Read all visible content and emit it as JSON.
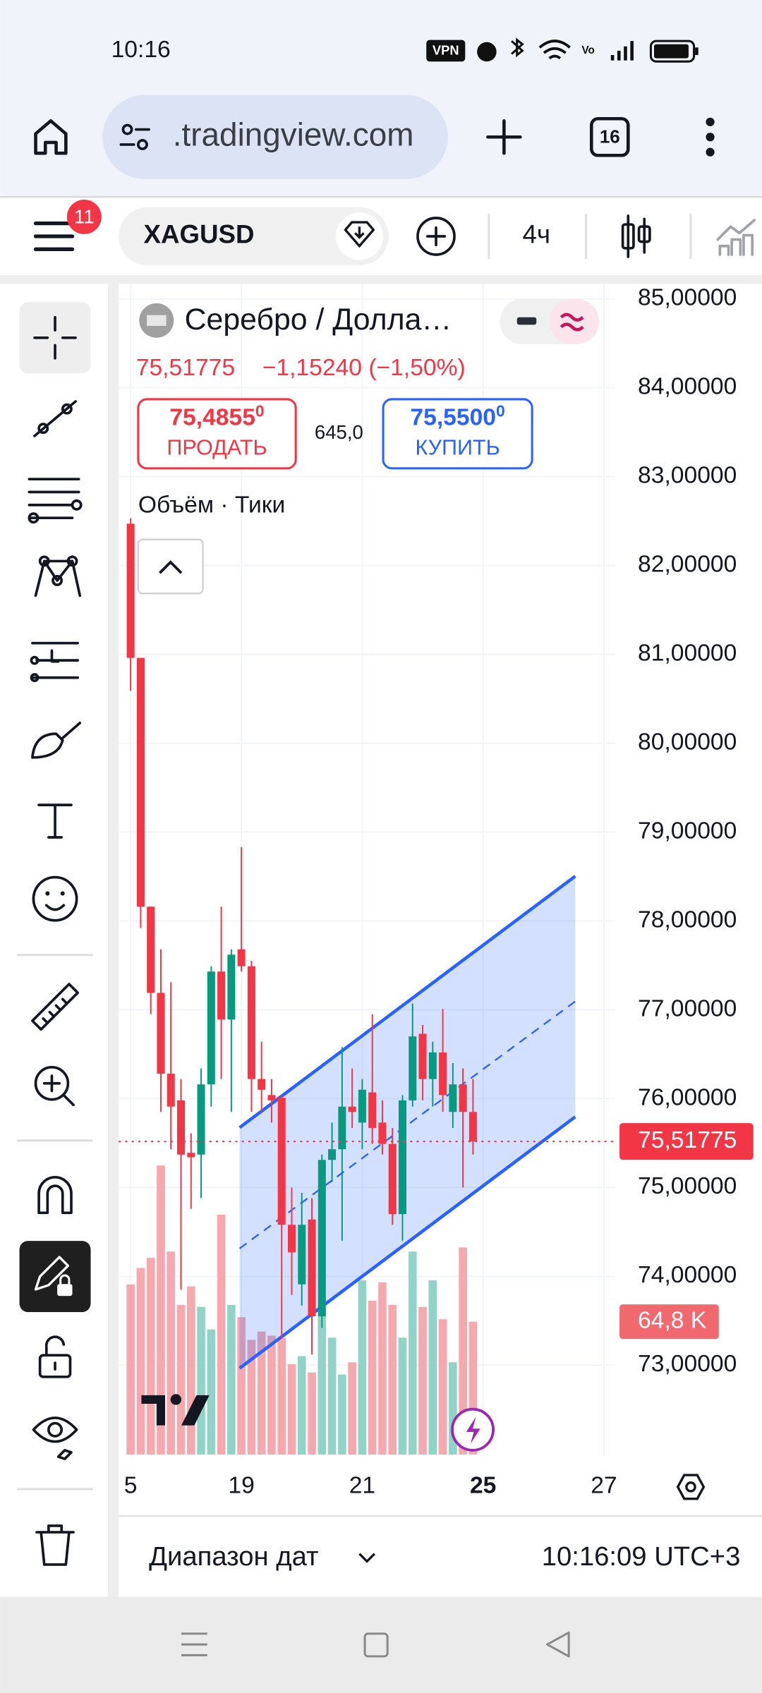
{
  "status_bar": {
    "time": "10:16",
    "vpn": "VPN"
  },
  "browser": {
    "url": ".tradingview.com",
    "tab_count": "16"
  },
  "toolbar": {
    "notifications": "11",
    "symbol": "XAGUSD",
    "interval": "4ч"
  },
  "header": {
    "title": "Серебро / Долла…",
    "price": "75,51775",
    "change": "−1,15240 (−1,50%)",
    "sell": {
      "price": "75,4855",
      "pip": "0",
      "label": "ПРОДАТЬ"
    },
    "spread": "645,0",
    "buy": {
      "price": "75,5500",
      "pip": "0",
      "label": "КУПИТЬ"
    },
    "indicator": "Объём · Тики"
  },
  "chart_data": {
    "type": "candlestick",
    "up_color": "#089981",
    "down_color": "#f23645",
    "up_volume_color": "#92d3c8",
    "down_volume_color": "#f5a8ad",
    "open": [
      82.47,
      80.96,
      78.16,
      77.19,
      76.28,
      75.98,
      75.39,
      75.37,
      76.16,
      77.43,
      76.89,
      77.68,
      77.49,
      76.22,
      76.04,
      76.01,
      74.58,
      73.91,
      74.64,
      73.55,
      75.31,
      75.43,
      75.91,
      75.73,
      76.07,
      75.73,
      75.49,
      74.7,
      75.98,
      76.73,
      76.22,
      76.52,
      75.85,
      76.16,
      75.85
    ],
    "high": [
      82.53,
      80.96,
      78.16,
      77.68,
      77.31,
      76.22,
      75.61,
      76.34,
      77.49,
      78.16,
      77.68,
      78.83,
      77.55,
      76.64,
      76.22,
      76.04,
      75.0,
      74.94,
      74.88,
      75.37,
      75.73,
      76.58,
      76.34,
      76.22,
      76.95,
      75.98,
      75.67,
      76.04,
      77.07,
      76.83,
      76.64,
      77.01,
      76.4,
      76.34,
      76.22
    ],
    "low": [
      80.59,
      77.92,
      76.95,
      75.85,
      75.43,
      73.85,
      74.76,
      74.88,
      75.91,
      76.22,
      75.85,
      77.43,
      75.85,
      75.85,
      75.73,
      73.3,
      73.79,
      73.67,
      73.12,
      73.42,
      75.06,
      74.4,
      75.67,
      75.43,
      75.49,
      75.37,
      74.58,
      74.4,
      75.91,
      75.98,
      75.91,
      75.85,
      75.67,
      75.0,
      75.37
    ],
    "close": [
      80.96,
      78.16,
      77.19,
      76.28,
      75.91,
      75.37,
      75.34,
      76.16,
      77.43,
      76.89,
      77.62,
      77.49,
      76.22,
      76.1,
      75.98,
      74.58,
      74.27,
      74.58,
      73.55,
      75.31,
      75.43,
      75.91,
      75.85,
      76.1,
      75.67,
      75.49,
      74.7,
      75.98,
      76.7,
      76.22,
      76.52,
      76.04,
      76.16,
      75.85,
      75.52
    ],
    "volume": [
      83,
      91,
      96,
      141,
      99,
      73,
      82,
      72,
      61,
      117,
      73,
      67,
      56,
      60,
      58,
      57,
      44,
      48,
      40,
      71,
      57,
      39,
      45,
      85,
      75,
      84,
      73,
      57,
      99,
      72,
      85,
      66,
      45,
      101,
      64.8
    ],
    "volume_label": "64,8 K",
    "last_price": 75.51775,
    "last_price_label": "75,51775",
    "ylim": [
      71.97,
      85.17
    ],
    "yticks": [
      {
        "value": 85,
        "label": "85,00000"
      },
      {
        "value": 84,
        "label": "84,00000"
      },
      {
        "value": 83,
        "label": "83,00000"
      },
      {
        "value": 82,
        "label": "82,00000"
      },
      {
        "value": 81,
        "label": "81,00000"
      },
      {
        "value": 80,
        "label": "80,00000"
      },
      {
        "value": 79,
        "label": "79,00000"
      },
      {
        "value": 78,
        "label": "78,00000"
      },
      {
        "value": 77,
        "label": "77,00000"
      },
      {
        "value": 76,
        "label": "76,00000"
      },
      {
        "value": 75,
        "label": "75,00000"
      },
      {
        "value": 74,
        "label": "74,00000"
      },
      {
        "value": 73,
        "label": "73,00000"
      }
    ],
    "xlim": [
      -1.18,
      48.12
    ],
    "xticks": [
      {
        "value": 0,
        "label": "5"
      },
      {
        "value": 11,
        "label": "19"
      },
      {
        "value": 23,
        "label": "21"
      },
      {
        "value": 35,
        "label": "25"
      },
      {
        "value": 47,
        "label": "27"
      }
    ],
    "grid": true
  },
  "footer": {
    "date_range": "Диапазон дат",
    "clock": "10:16:09 UTC+3"
  }
}
